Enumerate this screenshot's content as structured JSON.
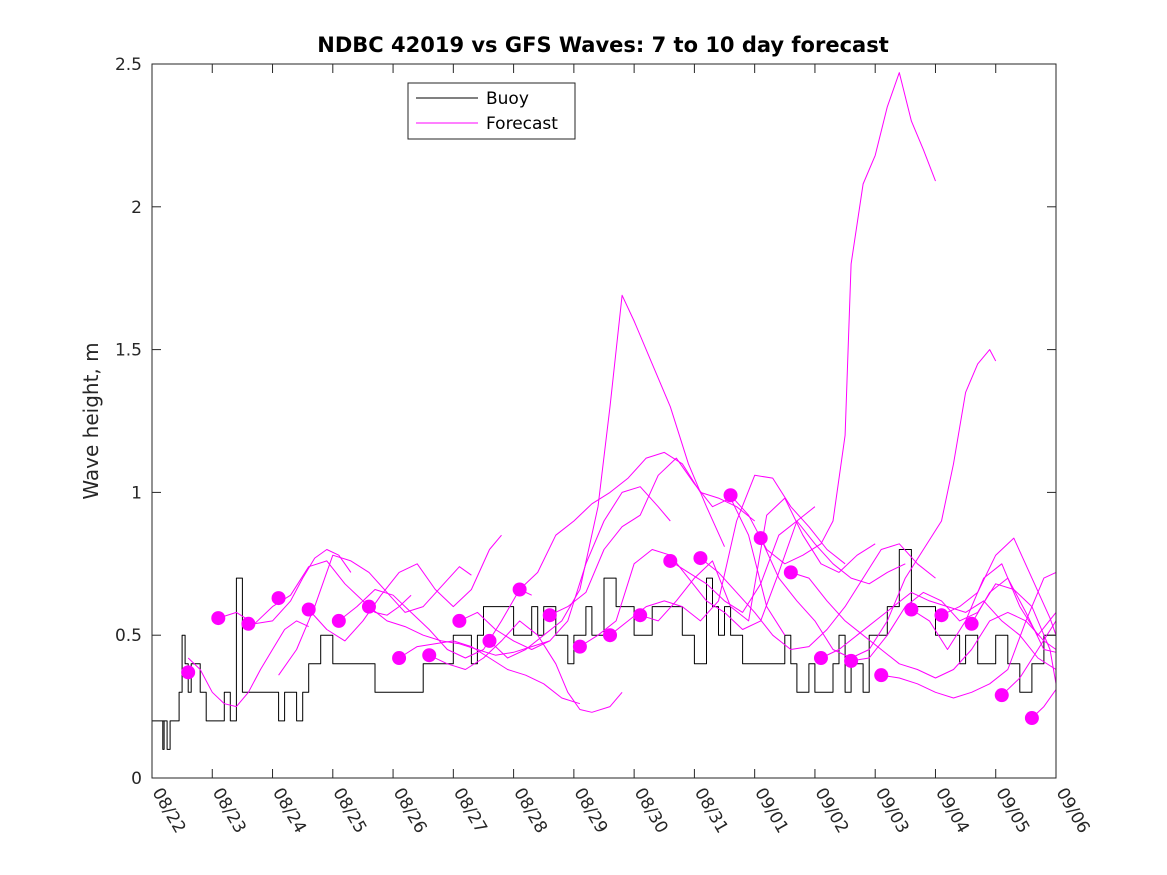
{
  "chart_data": {
    "type": "line",
    "title": "NDBC 42019 vs GFS Waves: 7 to 10 day forecast",
    "xlabel": "",
    "ylabel": "Wave height, m",
    "xlim": [
      0,
      15
    ],
    "ylim": [
      0,
      2.5
    ],
    "yticks": [
      0,
      0.5,
      1,
      1.5,
      2,
      2.5
    ],
    "ytick_labels": [
      "0",
      "0.5",
      "1",
      "1.5",
      "2",
      "2.5"
    ],
    "xtick_labels": [
      "08/22",
      "08/23",
      "08/24",
      "08/25",
      "08/26",
      "08/27",
      "08/28",
      "08/29",
      "08/30",
      "08/31",
      "09/01",
      "09/02",
      "09/03",
      "09/04",
      "09/05",
      "09/06"
    ],
    "legend_placement": "top-left-center",
    "colors": {
      "buoy": "#000000",
      "forecast": "#ff00ff"
    },
    "series": [
      {
        "name": "Buoy",
        "style": "step",
        "x": [
          0.0,
          0.2,
          0.18,
          0.25,
          0.3,
          0.35,
          0.4,
          0.45,
          0.5,
          0.55,
          0.6,
          0.65,
          0.7,
          0.8,
          0.9,
          0.95,
          1.0,
          1.05,
          1.1,
          1.15,
          1.2,
          1.3,
          1.4,
          1.5,
          1.7,
          1.9,
          2.0,
          2.1,
          2.2,
          2.3,
          2.4,
          2.5,
          2.6,
          2.8,
          3.0,
          3.1,
          3.15,
          3.2,
          3.25,
          3.3,
          3.35,
          3.5,
          3.6,
          3.7,
          3.8,
          4.0,
          4.5,
          5.0,
          5.3,
          5.4,
          5.5,
          6.0,
          6.2,
          6.3,
          6.4,
          6.5,
          6.6,
          6.7,
          6.8,
          6.9,
          7.0,
          7.2,
          7.3,
          7.4,
          7.5,
          7.6,
          7.7,
          8.0,
          8.3,
          8.5,
          8.6,
          8.7,
          8.8,
          9.0,
          9.2,
          9.3,
          9.4,
          9.5,
          9.6,
          9.8,
          10.0,
          10.2,
          10.4,
          10.5,
          10.6,
          10.7,
          10.9,
          11.0,
          11.2,
          11.3,
          11.4,
          11.5,
          11.6,
          11.8,
          11.9,
          12.0,
          12.2,
          12.4,
          12.6,
          12.8,
          13.0,
          13.2,
          13.4,
          13.5,
          13.7,
          13.9,
          14.0,
          14.2,
          14.4,
          14.6,
          14.8,
          15.0
        ],
        "y": [
          0.2,
          0.1,
          0.2,
          0.1,
          0.2,
          0.2,
          0.2,
          0.3,
          0.5,
          0.4,
          0.3,
          0.4,
          0.4,
          0.3,
          0.2,
          0.2,
          0.2,
          0.2,
          0.2,
          0.2,
          0.3,
          0.2,
          0.7,
          0.3,
          0.3,
          0.3,
          0.3,
          0.2,
          0.3,
          0.3,
          0.2,
          0.3,
          0.4,
          0.5,
          0.4,
          0.4,
          0.4,
          0.4,
          0.4,
          0.4,
          0.4,
          0.4,
          0.4,
          0.3,
          0.3,
          0.3,
          0.4,
          0.5,
          0.4,
          0.5,
          0.6,
          0.5,
          0.5,
          0.6,
          0.5,
          0.6,
          0.6,
          0.5,
          0.5,
          0.4,
          0.5,
          0.6,
          0.5,
          0.5,
          0.7,
          0.7,
          0.6,
          0.5,
          0.6,
          0.6,
          0.6,
          0.6,
          0.5,
          0.4,
          0.7,
          0.6,
          0.5,
          0.6,
          0.5,
          0.4,
          0.4,
          0.4,
          0.4,
          0.5,
          0.4,
          0.3,
          0.4,
          0.3,
          0.3,
          0.4,
          0.5,
          0.3,
          0.4,
          0.3,
          0.5,
          0.5,
          0.6,
          0.8,
          0.6,
          0.6,
          0.5,
          0.5,
          0.4,
          0.5,
          0.4,
          0.4,
          0.5,
          0.4,
          0.3,
          0.4,
          0.5,
          0.6
        ]
      },
      {
        "name": "Forecast",
        "x": [
          0.6,
          0.8,
          1.0,
          1.2,
          1.4,
          1.6,
          1.8,
          2.0,
          2.2,
          2.4,
          2.6
        ],
        "y": [
          0.42,
          0.38,
          0.3,
          0.26,
          0.25,
          0.3,
          0.38,
          0.45,
          0.52,
          0.55,
          0.53
        ]
      },
      {
        "name": "Forecast",
        "x": [
          1.1,
          1.4,
          1.7,
          2.0,
          2.3,
          2.5,
          2.7,
          2.9,
          3.1,
          3.3
        ],
        "y": [
          0.56,
          0.58,
          0.54,
          0.55,
          0.62,
          0.7,
          0.77,
          0.8,
          0.78,
          0.72
        ]
      },
      {
        "name": "Forecast",
        "x": [
          1.7,
          2.0,
          2.3,
          2.6,
          2.9,
          3.2,
          3.5,
          3.7,
          3.9,
          4.1,
          4.3
        ],
        "y": [
          0.54,
          0.6,
          0.64,
          0.74,
          0.76,
          0.68,
          0.62,
          0.58,
          0.57,
          0.6,
          0.64
        ]
      },
      {
        "name": "Forecast",
        "x": [
          2.1,
          2.4,
          2.7,
          3.0,
          3.3,
          3.6,
          3.9,
          4.2,
          4.5,
          4.8,
          5.1,
          5.3
        ],
        "y": [
          0.36,
          0.45,
          0.6,
          0.78,
          0.76,
          0.72,
          0.65,
          0.58,
          0.6,
          0.67,
          0.74,
          0.71
        ]
      },
      {
        "name": "Forecast",
        "x": [
          2.6,
          2.9,
          3.2,
          3.5,
          3.8,
          4.1,
          4.4,
          4.7,
          5.0,
          5.3,
          5.6,
          5.8
        ],
        "y": [
          0.59,
          0.52,
          0.48,
          0.55,
          0.64,
          0.72,
          0.75,
          0.66,
          0.6,
          0.66,
          0.8,
          0.85
        ]
      },
      {
        "name": "Forecast",
        "x": [
          3.1,
          3.4,
          3.7,
          4.0,
          4.3,
          4.6,
          4.9,
          5.2,
          5.5,
          5.8,
          6.1,
          6.3
        ],
        "y": [
          0.55,
          0.6,
          0.66,
          0.64,
          0.58,
          0.52,
          0.45,
          0.42,
          0.45,
          0.55,
          0.66,
          0.64
        ]
      },
      {
        "name": "Forecast",
        "x": [
          3.6,
          3.9,
          4.2,
          4.5,
          4.8,
          5.1,
          5.4,
          5.7,
          6.0,
          6.3,
          6.6
        ],
        "y": [
          0.6,
          0.55,
          0.53,
          0.5,
          0.48,
          0.47,
          0.45,
          0.43,
          0.44,
          0.46,
          0.48
        ]
      },
      {
        "name": "Forecast",
        "x": [
          4.1,
          4.4,
          4.7,
          5.0,
          5.3,
          5.6,
          5.9,
          6.2,
          6.5,
          6.8,
          7.1
        ],
        "y": [
          0.42,
          0.46,
          0.47,
          0.48,
          0.46,
          0.42,
          0.38,
          0.36,
          0.33,
          0.28,
          0.26
        ]
      },
      {
        "name": "Forecast",
        "x": [
          4.6,
          4.9,
          5.2,
          5.5,
          5.8,
          6.1,
          6.4,
          6.7,
          6.9,
          7.1,
          7.3,
          7.6,
          7.8
        ],
        "y": [
          0.43,
          0.4,
          0.38,
          0.42,
          0.48,
          0.55,
          0.5,
          0.4,
          0.3,
          0.24,
          0.23,
          0.25,
          0.3
        ]
      },
      {
        "name": "Forecast",
        "x": [
          5.1,
          5.4,
          5.7,
          6.0,
          6.3,
          6.6,
          6.9,
          7.2,
          7.5,
          7.8,
          8.1,
          8.4,
          8.6
        ],
        "y": [
          0.55,
          0.58,
          0.52,
          0.48,
          0.45,
          0.48,
          0.55,
          0.75,
          0.9,
          1.0,
          1.02,
          0.95,
          0.9
        ]
      },
      {
        "name": "Forecast",
        "x": [
          5.6,
          5.9,
          6.2,
          6.5,
          6.8,
          7.1,
          7.4,
          7.6,
          7.8,
          8.0,
          8.3,
          8.6,
          8.9,
          9.2,
          9.5
        ],
        "y": [
          0.48,
          0.42,
          0.45,
          0.5,
          0.55,
          0.66,
          0.95,
          1.3,
          1.69,
          1.6,
          1.45,
          1.3,
          1.1,
          0.95,
          0.81
        ]
      },
      {
        "name": "Forecast",
        "x": [
          6.1,
          6.4,
          6.7,
          7.0,
          7.3,
          7.6,
          7.9,
          8.2,
          8.5,
          8.8,
          9.1,
          9.4,
          9.7,
          10.0
        ],
        "y": [
          0.66,
          0.72,
          0.85,
          0.9,
          0.96,
          1.0,
          1.05,
          1.12,
          1.14,
          1.1,
          1.0,
          0.98,
          0.95,
          0.9
        ]
      },
      {
        "name": "Forecast",
        "x": [
          6.6,
          6.9,
          7.2,
          7.5,
          7.8,
          8.1,
          8.4,
          8.7,
          9.0,
          9.3,
          9.6,
          9.9,
          10.2,
          10.5
        ],
        "y": [
          0.57,
          0.6,
          0.65,
          0.8,
          0.88,
          0.92,
          1.06,
          1.12,
          1.03,
          0.95,
          0.98,
          0.85,
          0.6,
          0.5
        ]
      },
      {
        "name": "Forecast",
        "x": [
          7.1,
          7.4,
          7.7,
          8.0,
          8.3,
          8.6,
          8.9,
          9.2,
          9.5,
          9.8,
          10.1,
          10.4,
          10.7,
          11.0
        ],
        "y": [
          0.46,
          0.5,
          0.55,
          0.75,
          0.8,
          0.78,
          0.7,
          0.62,
          0.58,
          0.52,
          0.55,
          0.72,
          0.9,
          0.95
        ]
      },
      {
        "name": "Forecast",
        "x": [
          7.6,
          7.9,
          8.2,
          8.5,
          8.8,
          9.1,
          9.4,
          9.7,
          10.0,
          10.3,
          10.6,
          10.9,
          11.2,
          11.5
        ],
        "y": [
          0.5,
          0.55,
          0.6,
          0.62,
          0.6,
          0.55,
          0.62,
          0.9,
          1.06,
          1.05,
          0.95,
          0.88,
          0.8,
          0.75
        ]
      },
      {
        "name": "Forecast",
        "x": [
          8.1,
          8.4,
          8.7,
          9.0,
          9.3,
          9.6,
          9.9,
          10.2,
          10.5,
          10.8,
          11.1,
          11.4,
          11.7,
          12.0
        ],
        "y": [
          0.57,
          0.55,
          0.62,
          0.7,
          0.76,
          0.6,
          0.55,
          0.92,
          0.98,
          0.85,
          0.75,
          0.72,
          0.78,
          0.82
        ]
      },
      {
        "name": "Forecast",
        "x": [
          8.6,
          8.9,
          9.2,
          9.5,
          9.8,
          10.1,
          10.4,
          10.7,
          11.0,
          11.3,
          11.6,
          11.9,
          12.2,
          12.5
        ],
        "y": [
          0.76,
          0.72,
          0.68,
          0.62,
          0.58,
          0.68,
          0.85,
          0.9,
          0.82,
          0.75,
          0.7,
          0.68,
          0.72,
          0.75
        ]
      },
      {
        "name": "Forecast",
        "x": [
          9.1,
          9.4,
          9.7,
          10.0,
          10.3,
          10.6,
          10.9,
          11.2,
          11.5,
          11.8,
          12.1,
          12.4,
          12.7,
          13.0
        ],
        "y": [
          0.77,
          0.72,
          0.65,
          0.58,
          0.5,
          0.45,
          0.46,
          0.52,
          0.6,
          0.7,
          0.8,
          0.82,
          0.75,
          0.7
        ]
      },
      {
        "name": "Forecast",
        "x": [
          9.6,
          9.9,
          10.2,
          10.5,
          10.8,
          11.1,
          11.3,
          11.5,
          11.6,
          11.8,
          12.0,
          12.2,
          12.4,
          12.6,
          12.8,
          13.0
        ],
        "y": [
          0.99,
          0.92,
          0.8,
          0.75,
          0.78,
          0.82,
          0.9,
          1.2,
          1.8,
          2.08,
          2.18,
          2.35,
          2.47,
          2.3,
          2.2,
          2.09
        ]
      },
      {
        "name": "Forecast",
        "x": [
          10.1,
          10.4,
          10.7,
          11.0,
          11.3,
          11.6,
          11.9,
          12.2,
          12.5,
          12.8,
          13.1,
          13.3,
          13.5,
          13.7,
          13.9,
          14.0
        ],
        "y": [
          0.84,
          0.7,
          0.62,
          0.55,
          0.45,
          0.42,
          0.45,
          0.55,
          0.7,
          0.8,
          0.9,
          1.1,
          1.35,
          1.45,
          1.5,
          1.46
        ]
      },
      {
        "name": "Forecast",
        "x": [
          10.6,
          10.9,
          11.2,
          11.5,
          11.8,
          12.1,
          12.4,
          12.7,
          13.0,
          13.3,
          13.6,
          13.9,
          14.2,
          14.5,
          14.8,
          15.0
        ],
        "y": [
          0.72,
          0.7,
          0.62,
          0.55,
          0.5,
          0.45,
          0.4,
          0.38,
          0.35,
          0.38,
          0.45,
          0.55,
          0.58,
          0.55,
          0.48,
          0.45
        ]
      },
      {
        "name": "Forecast",
        "x": [
          11.1,
          11.4,
          11.7,
          12.0,
          12.3,
          12.6,
          12.9,
          13.2,
          13.5,
          13.8,
          14.1,
          14.4,
          14.7,
          15.0
        ],
        "y": [
          0.42,
          0.45,
          0.5,
          0.55,
          0.6,
          0.65,
          0.62,
          0.6,
          0.58,
          0.62,
          0.55,
          0.5,
          0.42,
          0.38
        ]
      },
      {
        "name": "Forecast",
        "x": [
          11.6,
          11.9,
          12.2,
          12.5,
          12.8,
          13.1,
          13.4,
          13.7,
          14.0,
          14.3,
          14.6,
          14.9,
          15.0
        ],
        "y": [
          0.41,
          0.42,
          0.5,
          0.6,
          0.65,
          0.62,
          0.55,
          0.58,
          0.68,
          0.66,
          0.6,
          0.45,
          0.33
        ]
      },
      {
        "name": "Forecast",
        "x": [
          12.1,
          12.4,
          12.7,
          13.0,
          13.3,
          13.6,
          13.9,
          14.2,
          14.5,
          14.8,
          15.0
        ],
        "y": [
          0.36,
          0.35,
          0.33,
          0.3,
          0.28,
          0.3,
          0.33,
          0.38,
          0.55,
          0.7,
          0.72
        ]
      },
      {
        "name": "Forecast",
        "x": [
          12.6,
          12.9,
          13.2,
          13.5,
          13.8,
          14.1,
          14.4,
          14.7,
          15.0
        ],
        "y": [
          0.59,
          0.55,
          0.45,
          0.55,
          0.7,
          0.75,
          0.6,
          0.5,
          0.58
        ]
      },
      {
        "name": "Forecast",
        "x": [
          13.1,
          13.4,
          13.7,
          14.0,
          14.3,
          14.6,
          14.9,
          15.0
        ],
        "y": [
          0.57,
          0.6,
          0.65,
          0.78,
          0.84,
          0.7,
          0.56,
          0.5
        ]
      },
      {
        "name": "Forecast",
        "x": [
          13.6,
          13.9,
          14.2,
          14.5,
          14.8,
          15.0
        ],
        "y": [
          0.54,
          0.65,
          0.7,
          0.58,
          0.45,
          0.44
        ]
      },
      {
        "name": "Forecast",
        "x": [
          14.1,
          14.4,
          14.7,
          15.0
        ],
        "y": [
          0.29,
          0.35,
          0.45,
          0.55
        ]
      },
      {
        "name": "Forecast",
        "x": [
          14.6,
          14.8,
          15.0
        ],
        "y": [
          0.21,
          0.25,
          0.31
        ]
      }
    ],
    "points": {
      "name": "Forecast markers",
      "x": [
        0.6,
        1.1,
        1.6,
        2.1,
        2.6,
        3.1,
        3.6,
        4.1,
        4.6,
        5.1,
        5.6,
        6.1,
        6.6,
        7.1,
        7.6,
        8.1,
        8.6,
        9.1,
        9.6,
        10.1,
        10.6,
        11.1,
        11.6,
        12.1,
        12.6,
        13.1,
        13.6,
        14.1,
        14.6
      ],
      "y": [
        0.37,
        0.56,
        0.54,
        0.63,
        0.59,
        0.55,
        0.6,
        0.42,
        0.43,
        0.55,
        0.48,
        0.66,
        0.57,
        0.46,
        0.5,
        0.57,
        0.76,
        0.77,
        0.99,
        0.84,
        0.72,
        0.42,
        0.41,
        0.36,
        0.59,
        0.57,
        0.54,
        0.29,
        0.21
      ]
    },
    "legend": [
      {
        "label": "Buoy",
        "color": "#000000"
      },
      {
        "label": "Forecast",
        "color": "#ff00ff"
      }
    ]
  }
}
